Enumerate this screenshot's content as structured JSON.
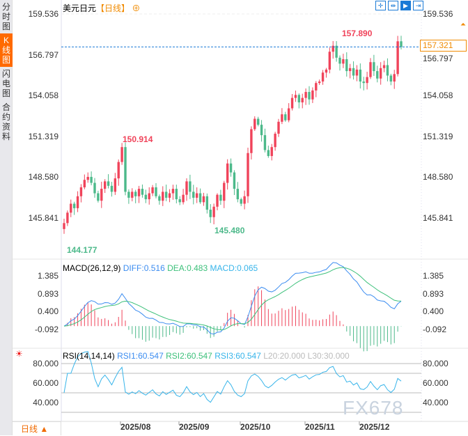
{
  "sidebar": {
    "tabs": [
      {
        "label": "分时图"
      },
      {
        "label": "K线图",
        "active": true
      },
      {
        "label": "闪电图"
      },
      {
        "label": "合约资料"
      }
    ]
  },
  "header": {
    "symbol": "美元日元",
    "period": "【日线】",
    "toolbar_icons": [
      "crosshair-icon",
      "fit-range-icon",
      "play-icon",
      "jump-latest-icon"
    ]
  },
  "colors": {
    "up": "#f0435a",
    "down": "#4cb98a",
    "diff": "#3b8cf0",
    "dea": "#3cc07a",
    "rsi": "#36b4ea",
    "current_price": "#f08a00"
  },
  "current_price": "157.321",
  "period_selector": "日线 ▲",
  "watermark": "FX678",
  "chart_data": [
    {
      "type": "candlestick",
      "yticks": [
        "159.536",
        "156.797",
        "154.058",
        "151.319",
        "148.580",
        "145.841"
      ],
      "ylim": [
        143.6,
        160.0
      ],
      "xticks": [
        "2025/08",
        "2025/09",
        "2025/10",
        "2025/11",
        "2025/12"
      ],
      "annotations": {
        "high": "157.890",
        "local_high": "150.914",
        "local_low": "145.480",
        "low": "144.177"
      },
      "closes": [
        145.5,
        146.2,
        146.8,
        146.5,
        147.3,
        147.9,
        148.4,
        148.6,
        148.2,
        147.5,
        147.0,
        147.8,
        148.3,
        148.0,
        147.6,
        148.5,
        149.6,
        150.6,
        147.6,
        147.2,
        147.6,
        147.3,
        147.8,
        147.4,
        147.1,
        147.5,
        147.9,
        147.3,
        147.0,
        147.6,
        147.2,
        147.5,
        147.8,
        147.1,
        146.9,
        147.4,
        148.3,
        147.6,
        147.2,
        147.5,
        146.9,
        147.3,
        146.4,
        145.9,
        146.6,
        147.4,
        147.0,
        148.2,
        149.5,
        148.9,
        147.8,
        147.1,
        146.8,
        147.3,
        150.2,
        151.8,
        152.5,
        152.1,
        151.4,
        150.4,
        150.0,
        150.6,
        151.5,
        152.3,
        152.8,
        152.4,
        153.2,
        153.9,
        154.1,
        153.6,
        153.9,
        154.3,
        153.8,
        154.4,
        154.9,
        155.0,
        155.6,
        155.8,
        157.0,
        157.4,
        156.6,
        156.2,
        156.5,
        155.7,
        155.9,
        155.4,
        155.8,
        155.0,
        154.9,
        155.3,
        156.3,
        155.7,
        155.2,
        155.9,
        156.1,
        155.4,
        155.0,
        155.5,
        157.7,
        157.32
      ]
    },
    {
      "type": "line",
      "name": "MACD",
      "params": "MACD(26,12,9)",
      "diff": "DIFF:0.516",
      "dea": "DEA:0.483",
      "macd": "MACD:0.065",
      "yticks": [
        "1.385",
        "0.893",
        "0.400",
        "-0.092"
      ]
    },
    {
      "type": "line",
      "name": "RSI",
      "params": "RSI(14,14,14)",
      "rsi1": "RSI1:60.547",
      "rsi2": "RSI2:60.547",
      "rsi3": "RSI3:60.547",
      "l20": "L20:20.000",
      "l30": "L30:30.000",
      "yticks": [
        "80.000",
        "60.000",
        "40.000"
      ]
    }
  ]
}
